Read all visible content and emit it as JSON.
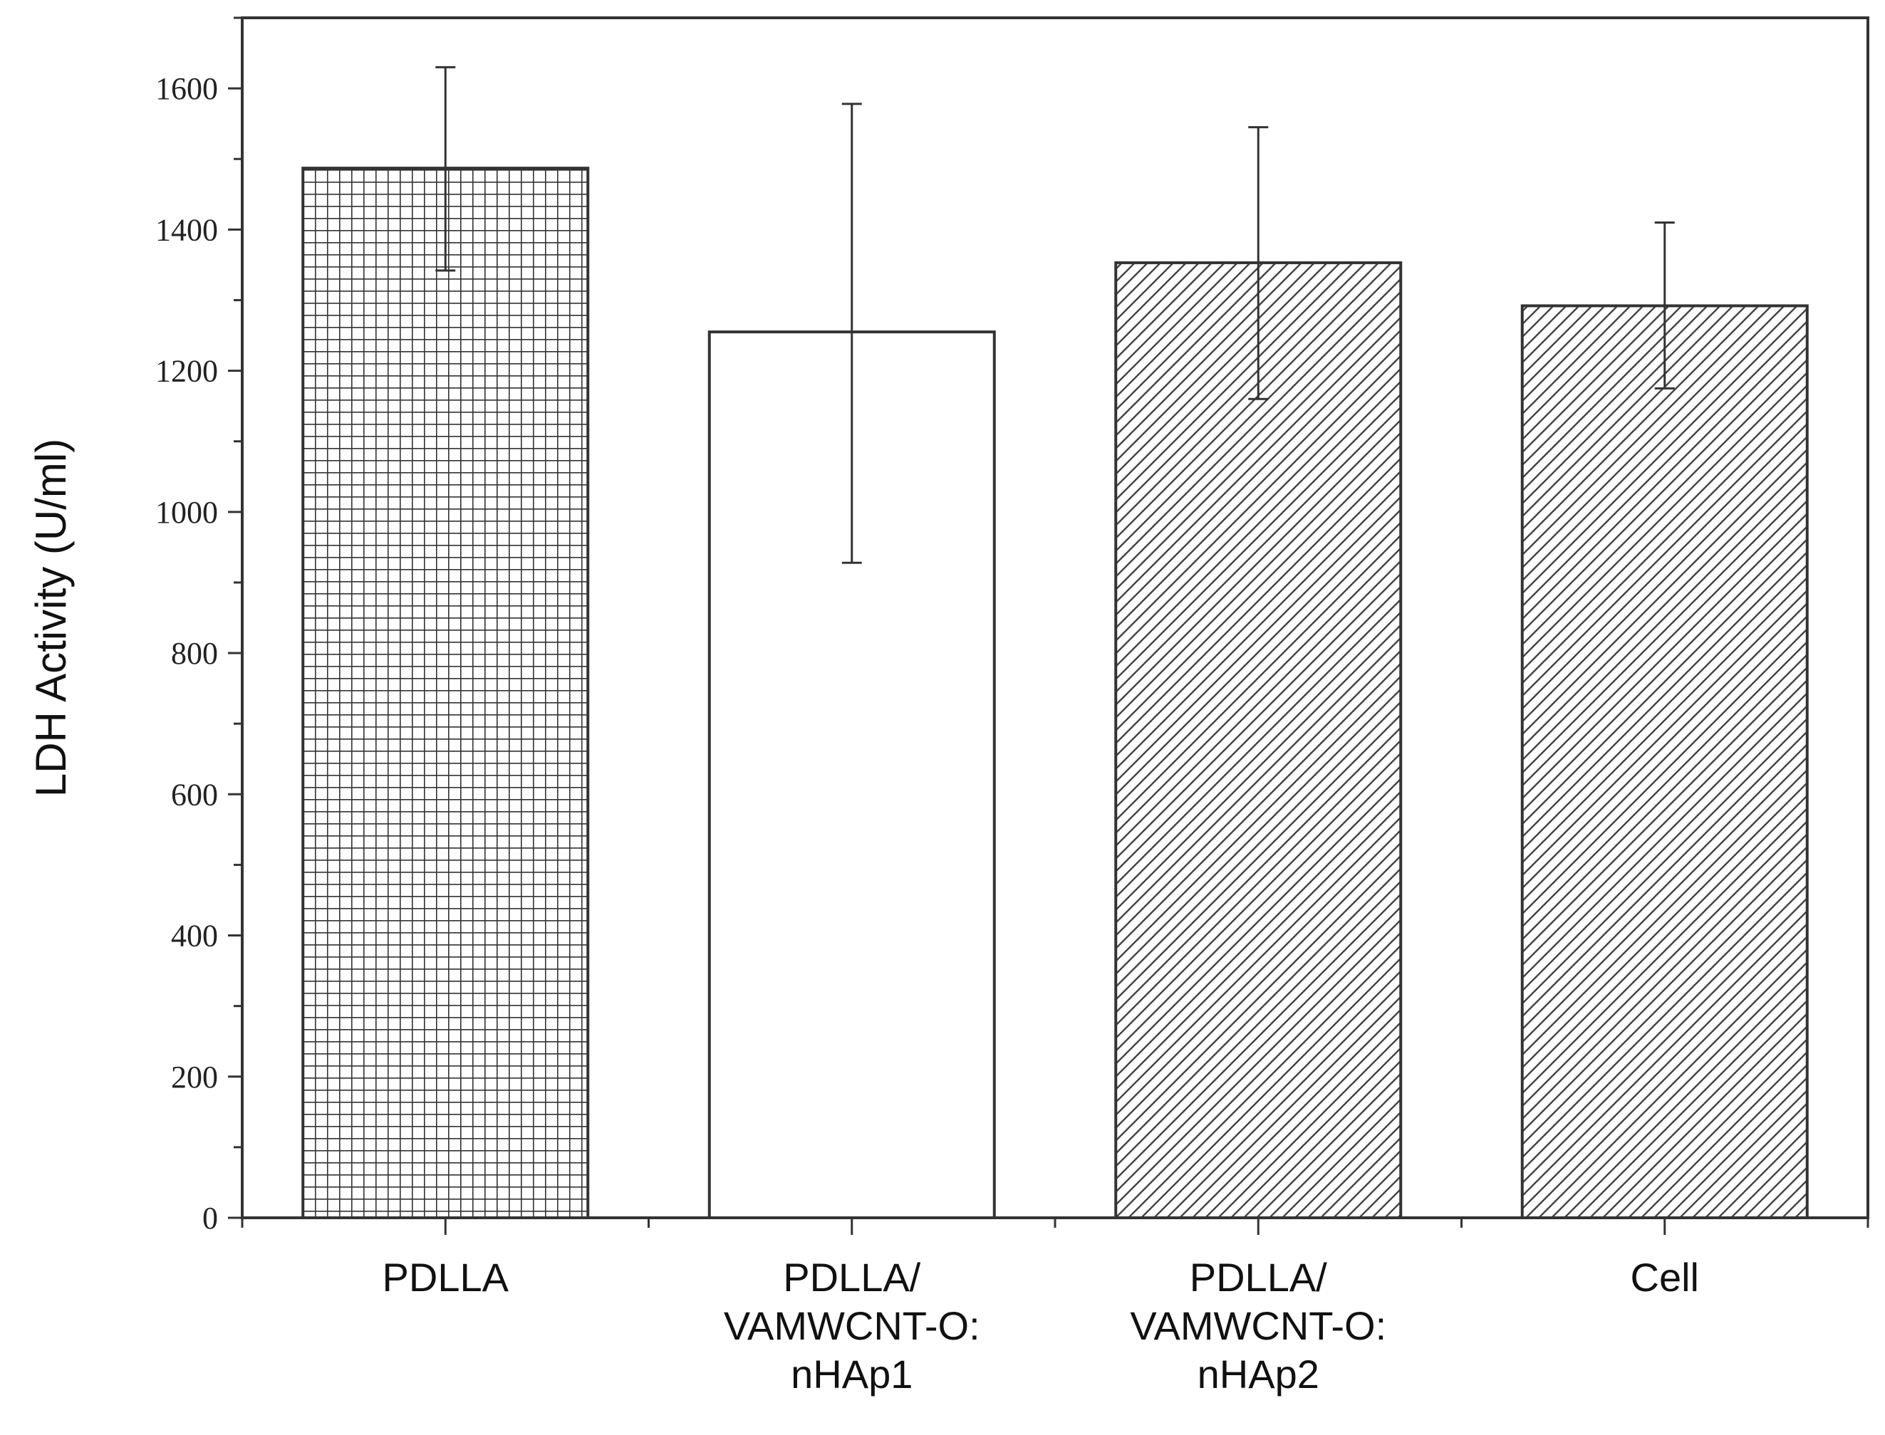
{
  "chart_data": {
    "type": "bar",
    "title": "",
    "xlabel": "",
    "ylabel": "LDH Activity (U/ml)",
    "ylim": [
      0,
      1700
    ],
    "yticks": [
      0,
      200,
      400,
      600,
      800,
      1000,
      1200,
      1400,
      1600
    ],
    "yticks_minor_step": 100,
    "grid": false,
    "categories": [
      {
        "lines": [
          "PDLLA"
        ]
      },
      {
        "lines": [
          "PDLLA/",
          "VAMWCNT-O:",
          "nHAp1"
        ]
      },
      {
        "lines": [
          "PDLLA/",
          "VAMWCNT-O:",
          "nHAp2"
        ]
      },
      {
        "lines": [
          "Cell"
        ]
      }
    ],
    "values": [
      1487,
      1255,
      1353,
      1292
    ],
    "error_low": [
      1342,
      928,
      1160,
      1175
    ],
    "error_high": [
      1630,
      1578,
      1545,
      1410
    ],
    "patterns": [
      "grid",
      "none",
      "diagonal",
      "diagonal"
    ],
    "colors": {
      "stroke": "#333333",
      "background": "#ffffff"
    }
  }
}
